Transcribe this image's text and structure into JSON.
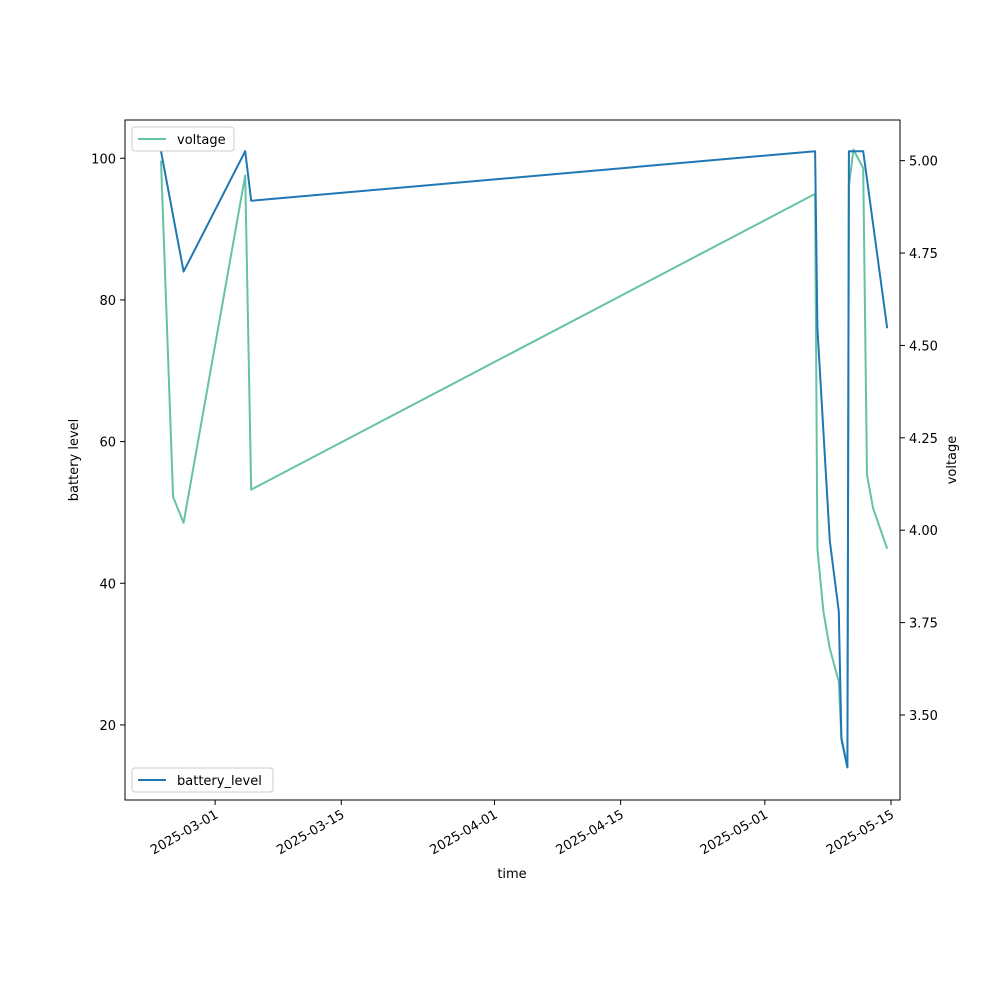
{
  "chart_data": {
    "type": "line",
    "title": "",
    "xlabel": "time",
    "ylabel_left": "battery level",
    "ylabel_right": "voltage",
    "x_ticks": [
      "2025-03-01",
      "2025-03-15",
      "2025-04-01",
      "2025-04-15",
      "2025-05-01",
      "2025-05-15"
    ],
    "y_left_ticks": [
      "20",
      "40",
      "60",
      "80",
      "100"
    ],
    "y_right_ticks": [
      "3.50",
      "3.75",
      "4.00",
      "4.25",
      "4.50",
      "4.75",
      "5.00"
    ],
    "xlim": [
      "2025-02-19",
      "2025-05-16"
    ],
    "ylim_left": [
      9.4,
      105.4
    ],
    "ylim_right": [
      3.27,
      5.11
    ],
    "grid": false,
    "series": [
      {
        "name": "battery_level",
        "axis": "left",
        "color": "#1f77b4",
        "legend_position": "lower-left",
        "points": [
          {
            "x": "2025-02-23",
            "y": 101
          },
          {
            "x": "2025-02-25 12:00",
            "y": 84
          },
          {
            "x": "2025-03-04 08:00",
            "y": 101
          },
          {
            "x": "2025-03-05",
            "y": 94
          },
          {
            "x": "2025-05-06 14:00",
            "y": 101
          },
          {
            "x": "2025-05-06 20:00",
            "y": 76
          },
          {
            "x": "2025-05-08 05:00",
            "y": 46
          },
          {
            "x": "2025-05-09 05:00",
            "y": 36
          },
          {
            "x": "2025-05-09 12:00",
            "y": 18
          },
          {
            "x": "2025-05-10 04:00",
            "y": 14
          },
          {
            "x": "2025-05-10 08:00",
            "y": 101
          },
          {
            "x": "2025-05-11 22:00",
            "y": 101
          },
          {
            "x": "2025-05-14 14:00",
            "y": 76
          }
        ]
      },
      {
        "name": "voltage",
        "axis": "right",
        "color": "#66c2a5",
        "legend_position": "upper-left",
        "points": [
          {
            "x": "2025-02-23",
            "y": 5.0
          },
          {
            "x": "2025-02-24 08:00",
            "y": 4.09
          },
          {
            "x": "2025-02-25 12:00",
            "y": 4.02
          },
          {
            "x": "2025-03-04 08:00",
            "y": 4.96
          },
          {
            "x": "2025-03-05",
            "y": 4.11
          },
          {
            "x": "2025-05-06 14:00",
            "y": 4.91
          },
          {
            "x": "2025-05-06 20:00",
            "y": 3.95
          },
          {
            "x": "2025-05-07 12:00",
            "y": 3.78
          },
          {
            "x": "2025-05-08 05:00",
            "y": 3.68
          },
          {
            "x": "2025-05-09 05:00",
            "y": 3.59
          },
          {
            "x": "2025-05-09 12:00",
            "y": 3.44
          },
          {
            "x": "2025-05-10 04:00",
            "y": 3.36
          },
          {
            "x": "2025-05-10 08:00",
            "y": 4.93
          },
          {
            "x": "2025-05-10 20:00",
            "y": 5.03
          },
          {
            "x": "2025-05-11 22:00",
            "y": 4.98
          },
          {
            "x": "2025-05-12 08:00",
            "y": 4.15
          },
          {
            "x": "2025-05-13",
            "y": 4.06
          },
          {
            "x": "2025-05-14 14:00",
            "y": 3.95
          }
        ]
      }
    ]
  }
}
